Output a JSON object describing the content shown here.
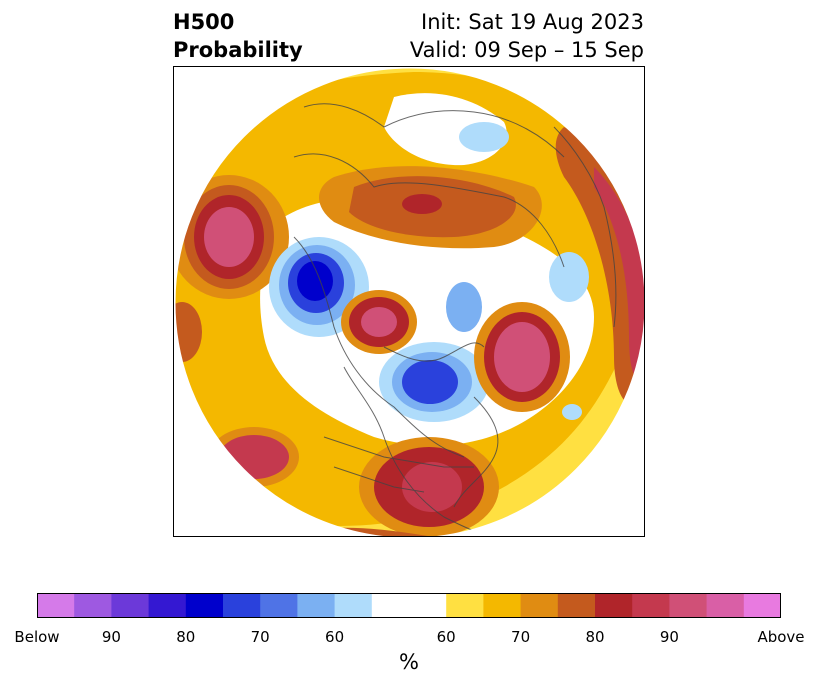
{
  "title": {
    "left_line1": "H500",
    "left_line2": "Probability",
    "right_line1": "Init: Sat 19 Aug 2023",
    "right_line2": "Valid: 09 Sep – 15 Sep"
  },
  "colorbar": {
    "colors": [
      "#d57ae9",
      "#9e59e1",
      "#6c39d9",
      "#3418d2",
      "#0000cc",
      "#2a41dc",
      "#4f73e6",
      "#7bb0f2",
      "#afdcfb",
      "#ffffff",
      "#ffe041",
      "#f4b800",
      "#e08c12",
      "#c45a1e",
      "#b0252a",
      "#c4394e",
      "#d05077",
      "#d95fa6",
      "#e87ae0"
    ],
    "tick_labels": [
      "Below",
      "90",
      "80",
      "70",
      "60",
      "60",
      "70",
      "80",
      "90",
      "Above"
    ],
    "unit": "%"
  }
}
